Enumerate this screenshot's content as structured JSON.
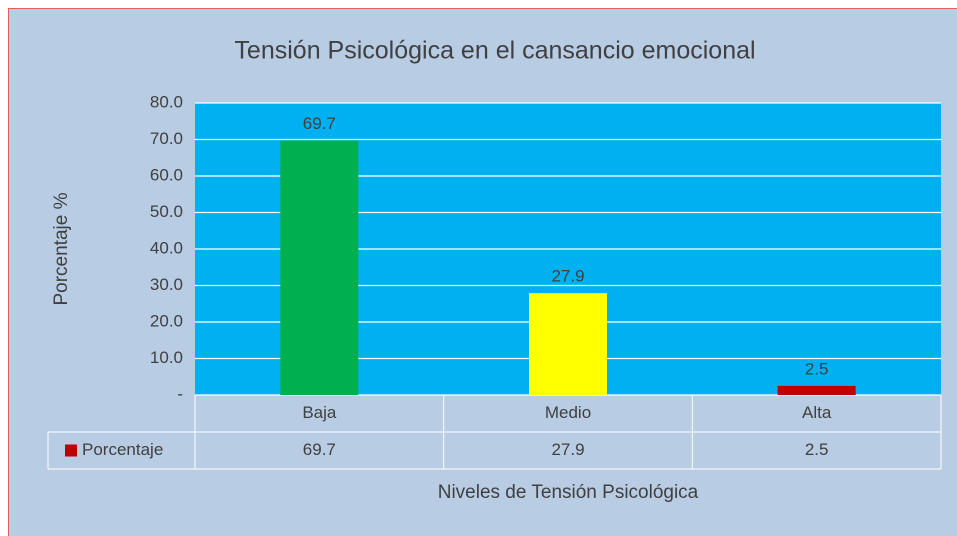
{
  "chart_data": {
    "type": "bar",
    "title": "Tensión Psicológica en el cansancio emocional",
    "y_label": "Porcentaje %",
    "x_label": "Niveles de Tensión Psicológica",
    "categories": [
      "Baja",
      "Medio",
      "Alta"
    ],
    "series": [
      {
        "name": "Porcentaje",
        "color": "#c00000",
        "colors": [
          "#00b050",
          "#ffff00",
          "#c00000"
        ],
        "values": [
          69.7,
          27.9,
          2.5
        ]
      }
    ],
    "ylim": [
      0,
      80
    ],
    "yticks": [
      {
        "value": 0,
        "label": "-"
      },
      {
        "value": 10,
        "label": "10.0"
      },
      {
        "value": 20,
        "label": "20.0"
      },
      {
        "value": 30,
        "label": "30.0"
      },
      {
        "value": 40,
        "label": "40.0"
      },
      {
        "value": 50,
        "label": "50.0"
      },
      {
        "value": 60,
        "label": "60.0"
      },
      {
        "value": 70,
        "label": "70.0"
      },
      {
        "value": 80,
        "label": "80.0"
      }
    ],
    "grid": true,
    "plot_background": "#00b0f0",
    "background": "#b8cce4",
    "data_table": true
  }
}
